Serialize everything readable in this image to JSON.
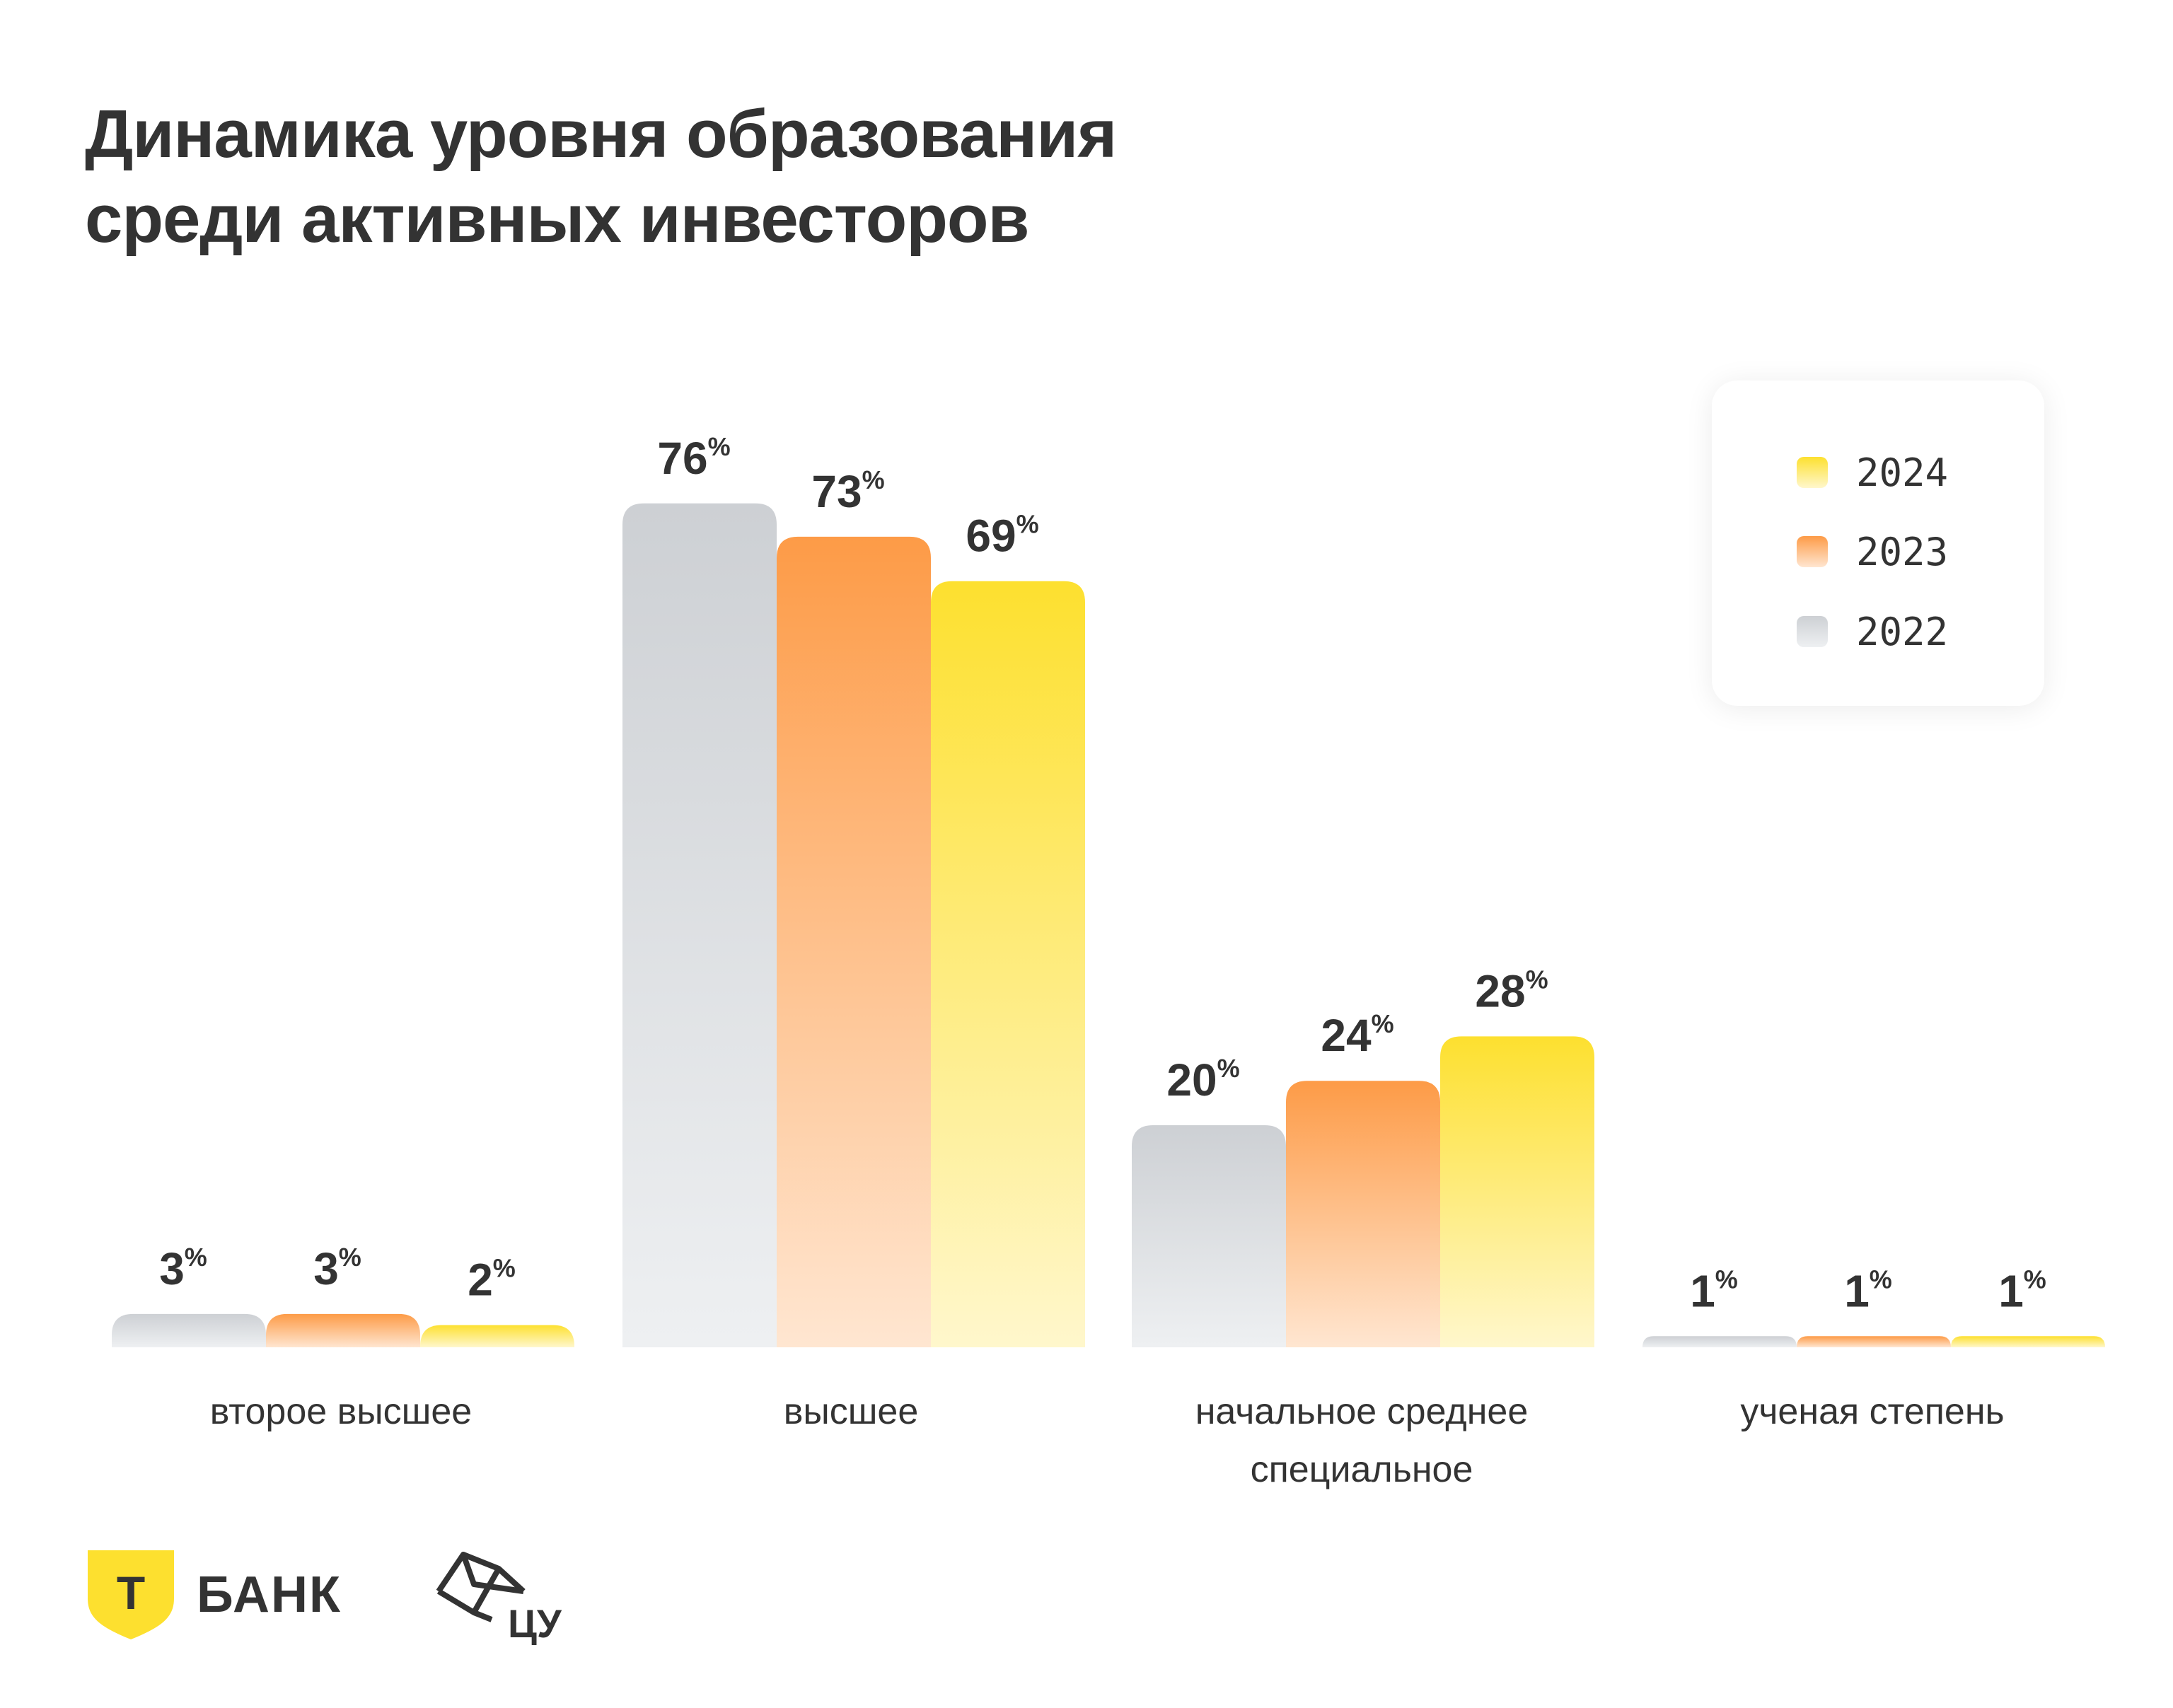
{
  "title": {
    "line1": "Динамика уровня образования",
    "line2": "среди активных инвесторов"
  },
  "legend": [
    {
      "label": "2024",
      "color": "#fde02f"
    },
    {
      "label": "2023",
      "color": "#fd9b47"
    },
    {
      "label": "2022",
      "color": "#cdd0d4"
    }
  ],
  "chart_data": {
    "type": "bar",
    "categories": [
      "второе высшее",
      "высшее",
      "начальное среднее специальное",
      "ученая степень"
    ],
    "category_lines": [
      [
        "второе высшее"
      ],
      [
        "высшее"
      ],
      [
        "начальное среднее",
        "специальное"
      ],
      [
        "ученая степень"
      ]
    ],
    "series": [
      {
        "name": "2022",
        "values": [
          3,
          76,
          20,
          1
        ],
        "color": "#cdd0d4"
      },
      {
        "name": "2023",
        "values": [
          3,
          73,
          24,
          1
        ],
        "color": "#fd9b47"
      },
      {
        "name": "2024",
        "values": [
          2,
          69,
          28,
          1
        ],
        "color": "#fde02f"
      }
    ],
    "value_suffix": "%",
    "ylim": [
      0,
      100
    ],
    "legend_position": "top-right",
    "grid": false
  },
  "footer": {
    "tbank_mark": "Т",
    "tbank_text": "БАНК",
    "cu_text": "ЦУ"
  }
}
